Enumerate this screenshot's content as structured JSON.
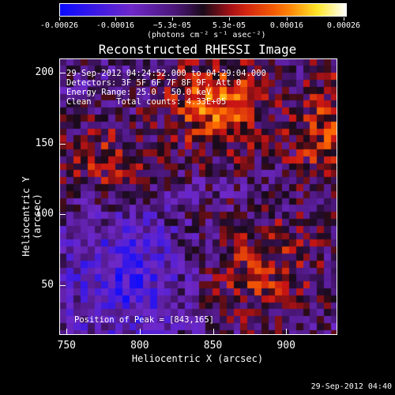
{
  "colorbar": {
    "ticks": [
      "-0.00026",
      "-0.00016",
      "−5.3e-05",
      "5.3e-05",
      "0.00016",
      "0.00026"
    ],
    "units": "(photons cm⁻² s⁻¹ asec⁻²)"
  },
  "plot": {
    "title": "Reconstructed RHESSI Image",
    "info_lines": [
      "29-Sep-2012 04:24:52.000 to 04:29:04.000",
      "Detectors: 3F 5F 6F 7F 8F 9F, Att 0",
      "Energy Range: 25.0 - 50.0 keV",
      "Clean     Total counts: 4.33E+05"
    ],
    "peak_text": "Position of Peak = [843,165]"
  },
  "axes": {
    "xlabel": "Heliocentric X (arcsec)",
    "ylabel": "Heliocentric Y (arcsec)",
    "xticks": [
      "750",
      "800",
      "850",
      "900"
    ],
    "yticks": [
      "200",
      "150",
      "100",
      "50"
    ]
  },
  "chart_data": {
    "type": "heatmap",
    "title": "Reconstructed RHESSI Image",
    "xlabel": "Heliocentric X (arcsec)",
    "ylabel": "Heliocentric Y (arcsec)",
    "xlim": [
      745,
      935
    ],
    "ylim": [
      15,
      210
    ],
    "clim": [
      -0.00026,
      0.00026
    ],
    "peak": [
      843,
      165
    ]
  },
  "footer": {
    "timestamp": "29-Sep-2012 04:40"
  }
}
